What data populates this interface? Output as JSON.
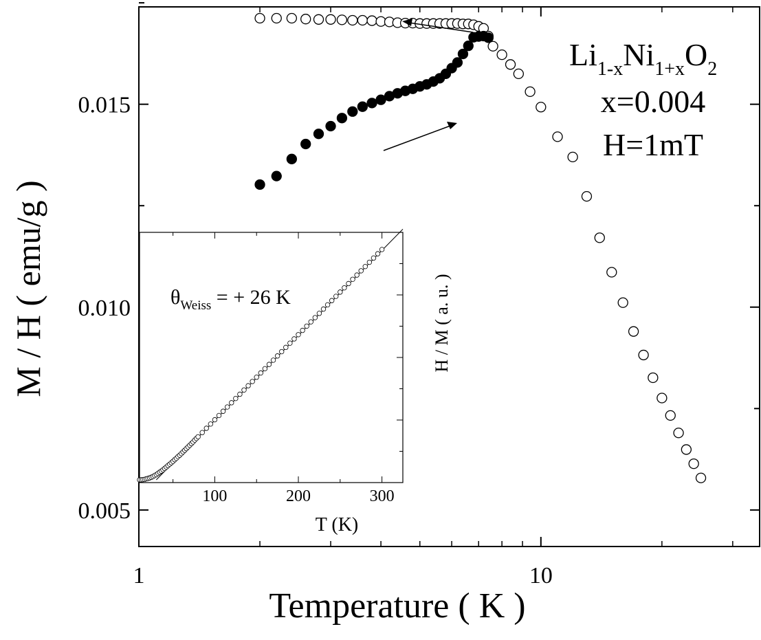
{
  "chart_data": [
    {
      "type": "scatter",
      "xlabel": "Temperature ( K )",
      "ylabel": "M / H ( emu/g )",
      "xscale": "log",
      "xlim": [
        1,
        35
      ],
      "ylim": [
        0.0041,
        0.0174
      ],
      "x_tick_labels": [
        {
          "value": 1,
          "label": "1"
        },
        {
          "value": 10,
          "label": "10"
        }
      ],
      "y_tick_labels": [
        {
          "value": 0.005,
          "label": "0.005"
        },
        {
          "value": 0.01,
          "label": "0.010"
        },
        {
          "value": 0.015,
          "label": "0.015"
        }
      ],
      "grid": false,
      "annotation": {
        "formula": {
          "base1": "Li",
          "sub1": "1-x",
          "base2": "Ni",
          "sub2": "1+x",
          "base3": "O",
          "sub3": "2"
        },
        "lines": [
          "x=0.004",
          "H=1mT"
        ]
      },
      "series": [
        {
          "marker": "open-circle",
          "color": "#000000",
          "x": [
            2.0,
            2.2,
            2.4,
            2.6,
            2.8,
            3.0,
            3.2,
            3.4,
            3.6,
            3.8,
            4.0,
            4.2,
            4.4,
            4.6,
            4.8,
            5.0,
            5.2,
            5.4,
            5.6,
            5.8,
            6.0,
            6.2,
            6.4,
            6.6,
            6.8,
            7.0,
            7.2,
            7.4,
            7.6,
            8.0,
            8.4,
            8.8,
            9.4,
            10.0,
            11.0,
            12.0,
            13.0,
            14.0,
            15.0,
            16.0,
            17.0,
            18.0,
            19.0,
            20.0,
            21.0,
            22.0,
            23.0,
            24.0,
            25.0
          ],
          "y": [
            0.01712,
            0.01712,
            0.01712,
            0.0171,
            0.01709,
            0.01709,
            0.01708,
            0.01707,
            0.01707,
            0.01706,
            0.01704,
            0.01703,
            0.01701,
            0.017,
            0.017,
            0.01699,
            0.01699,
            0.01699,
            0.01699,
            0.01699,
            0.01699,
            0.01699,
            0.01698,
            0.01698,
            0.01696,
            0.01692,
            0.01687,
            0.01668,
            0.01643,
            0.01622,
            0.01598,
            0.01575,
            0.01531,
            0.01493,
            0.0142,
            0.0137,
            0.01273,
            0.01171,
            0.01086,
            0.01011,
            0.0094,
            0.00882,
            0.00826,
            0.00776,
            0.00733,
            0.0069,
            0.00649,
            0.00614,
            0.00579
          ]
        },
        {
          "marker": "filled-circle",
          "color": "#000000",
          "x": [
            2.0,
            2.2,
            2.4,
            2.6,
            2.8,
            3.0,
            3.2,
            3.4,
            3.6,
            3.8,
            4.0,
            4.2,
            4.4,
            4.6,
            4.8,
            5.0,
            5.2,
            5.4,
            5.6,
            5.8,
            6.0,
            6.2,
            6.4,
            6.6,
            6.8,
            7.0,
            7.2,
            7.4
          ],
          "y": [
            0.01302,
            0.01323,
            0.01365,
            0.01402,
            0.01427,
            0.01446,
            0.01466,
            0.01482,
            0.01494,
            0.01503,
            0.01511,
            0.0152,
            0.01527,
            0.01533,
            0.01538,
            0.01544,
            0.01549,
            0.01556,
            0.01564,
            0.01575,
            0.01589,
            0.01603,
            0.01624,
            0.01644,
            0.01665,
            0.01667,
            0.01668,
            0.01664
          ]
        }
      ]
    },
    {
      "type": "scatter",
      "xlabel": "T (K)",
      "ylabel": "H / M ( a. u. )",
      "xlim": [
        10,
        325
      ],
      "x_tick_labels": [
        {
          "value": 100,
          "label": "100"
        },
        {
          "value": 200,
          "label": "200"
        },
        {
          "value": 300,
          "label": "300"
        }
      ],
      "annotation": {
        "theta": "θ",
        "sub": "Weiss",
        "rest": " = + 26 K"
      },
      "fit_line": {
        "x": [
          30,
          325
        ],
        "y": [
          0.0,
          1.06
        ]
      },
      "series": [
        {
          "marker": "open-circle",
          "x": [
            10,
            12,
            14,
            16,
            18,
            20,
            22,
            24,
            26,
            28,
            30,
            32,
            34,
            36,
            38,
            40,
            42,
            44,
            46,
            48,
            50,
            52,
            54,
            56,
            58,
            60,
            62,
            64,
            66,
            68,
            70,
            72,
            74,
            76,
            78,
            80,
            85,
            90,
            95,
            100,
            105,
            110,
            115,
            120,
            125,
            130,
            135,
            140,
            145,
            150,
            155,
            160,
            165,
            170,
            175,
            180,
            185,
            190,
            195,
            200,
            205,
            210,
            215,
            220,
            225,
            230,
            235,
            240,
            245,
            250,
            255,
            260,
            265,
            270,
            275,
            280,
            285,
            290,
            295,
            300
          ],
          "y": [
            0.0,
            0.0,
            0.001,
            0.002,
            0.004,
            0.006,
            0.008,
            0.011,
            0.014,
            0.018,
            0.022,
            0.027,
            0.032,
            0.037,
            0.042,
            0.048,
            0.054,
            0.06,
            0.066,
            0.072,
            0.078,
            0.085,
            0.091,
            0.098,
            0.104,
            0.111,
            0.118,
            0.125,
            0.132,
            0.139,
            0.146,
            0.153,
            0.16,
            0.168,
            0.175,
            0.182,
            0.2,
            0.218,
            0.236,
            0.254,
            0.272,
            0.29,
            0.308,
            0.326,
            0.344,
            0.362,
            0.38,
            0.398,
            0.416,
            0.434,
            0.452,
            0.47,
            0.488,
            0.506,
            0.524,
            0.542,
            0.56,
            0.578,
            0.596,
            0.614,
            0.632,
            0.65,
            0.668,
            0.686,
            0.704,
            0.722,
            0.74,
            0.758,
            0.776,
            0.794,
            0.812,
            0.83,
            0.848,
            0.866,
            0.884,
            0.902,
            0.92,
            0.938,
            0.956,
            0.974
          ]
        }
      ]
    }
  ]
}
